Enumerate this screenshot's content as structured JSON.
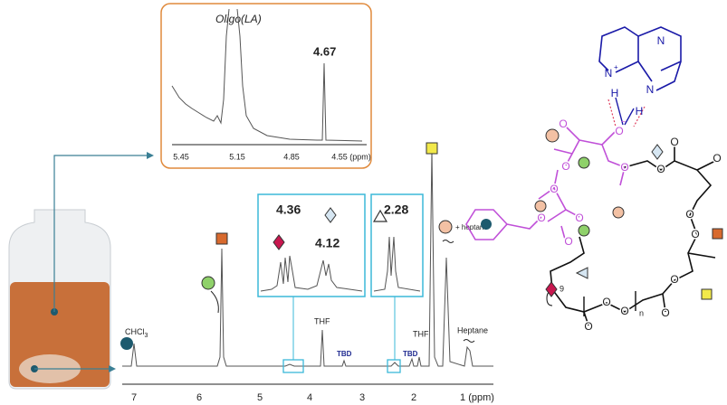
{
  "inset": {
    "title": "Oligo(LA)",
    "peak": "4.67",
    "ticks": [
      "5.45",
      "5.15",
      "4.85",
      "4.55 (ppm)"
    ]
  },
  "spectrum": {
    "ticks": [
      "7",
      "6",
      "5",
      "4",
      "3",
      "2",
      "1 (ppm)"
    ],
    "labels": {
      "chcl3": "CHCl",
      "chcl3_sub": "3",
      "thf_1": "THF",
      "tbd_1": "TBD",
      "tbd_2": "TBD",
      "thf_2": "THF",
      "heptane": "Heptane",
      "plus_heptane": "+ heptane"
    }
  },
  "zoom_1": {
    "peaks": [
      "4.36",
      "4.12"
    ]
  },
  "zoom_2": {
    "peaks": [
      "2.28"
    ]
  },
  "structure": {
    "tbd_atoms": [
      "N",
      "N",
      "H",
      "N",
      "H"
    ],
    "charge": "+",
    "anion_charge": "−",
    "purple_oxygens": [
      "O",
      "O",
      "O",
      "O",
      "O",
      "O",
      "O",
      "O"
    ],
    "black_oxygens": [
      "O",
      "O",
      "O",
      "O",
      "O",
      "O",
      "O",
      "O",
      "O",
      "O"
    ],
    "subscripts": [
      "9",
      "n"
    ]
  }
}
